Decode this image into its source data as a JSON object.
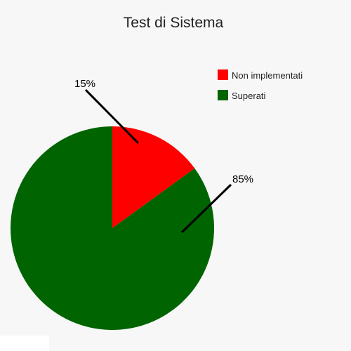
{
  "chart_data": {
    "type": "pie",
    "title": "Test di Sistema",
    "slices": [
      {
        "label": "Non implementati",
        "value": 15,
        "display": "15%",
        "color": "#ff0000"
      },
      {
        "label": "Superati",
        "value": 85,
        "display": "85%",
        "color": "#006400"
      }
    ],
    "legend": {
      "position": "top-right",
      "items": [
        "Non implementati",
        "Superati"
      ]
    },
    "start_angle_deg": 0,
    "direction": "clockwise"
  }
}
